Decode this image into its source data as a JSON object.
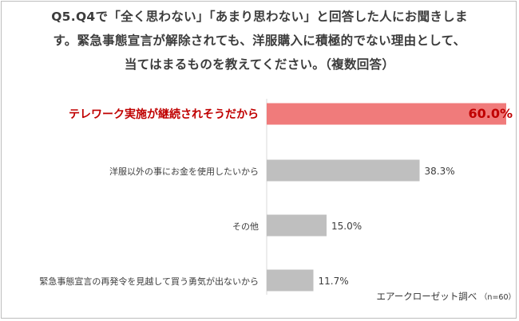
{
  "title_lines": [
    "Q5.Q4で「全く思わない」「あまり思わない」と回答した人にお聞きしま",
    "す。緊急事態宣言が解除されても、洋服購入に積極的でない理由として、",
    "当てはまるものを教えてください。（複数回答）"
  ],
  "source": {
    "label": "エアークローゼット調べ",
    "n_text": "（n=60）"
  },
  "colors": {
    "highlight_bar": "#f07b7b",
    "highlight_text": "#c00000",
    "bar": "#bfbfbf",
    "axis": "#d9d9d9",
    "text": "#3c3c3c"
  },
  "chart_data": {
    "type": "bar",
    "orientation": "horizontal",
    "categories": [
      "テレワーク実施が継続されそうだから",
      "洋服以外の事にお金を使用したいから",
      "その他",
      "緊急事態宣言の再発令を見越して買う勇気が出ないから"
    ],
    "values": [
      60.0,
      38.3,
      15.0,
      11.7
    ],
    "value_labels": [
      "60.0%",
      "38.3%",
      "15.0%",
      "11.7%"
    ],
    "highlight_index": 0,
    "unit": "%",
    "xlim": [
      0,
      60
    ],
    "grid": false
  }
}
